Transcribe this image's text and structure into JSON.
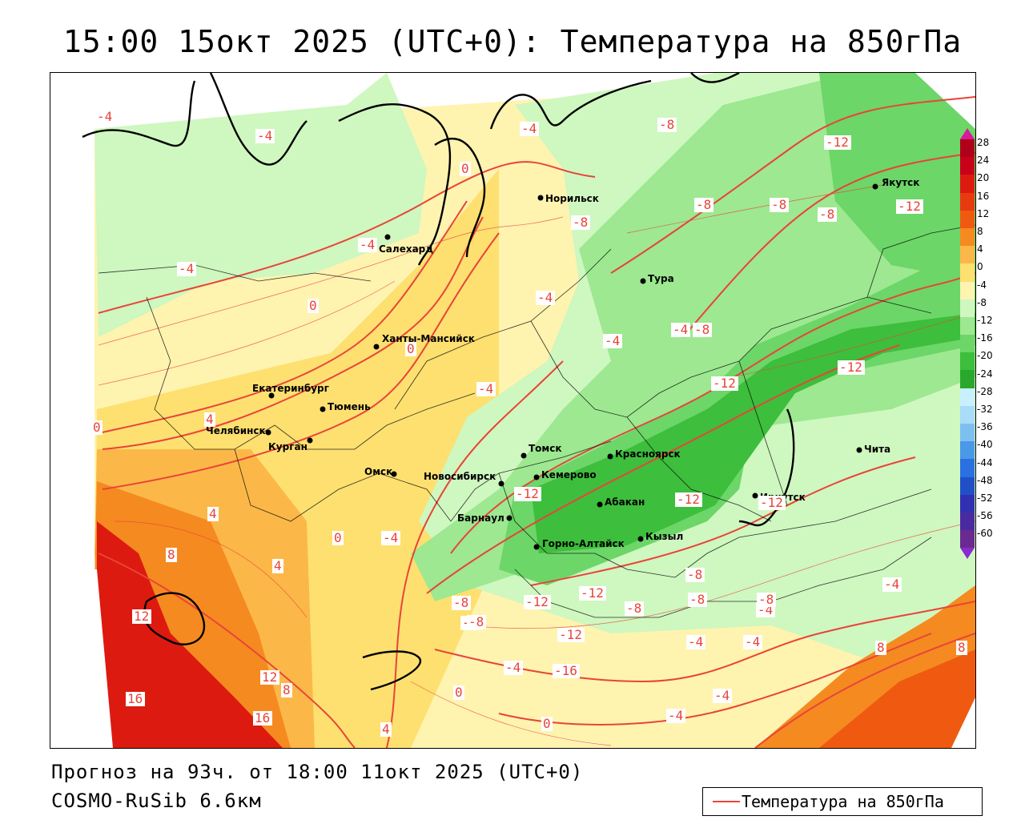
{
  "title": "15:00 15окт 2025 (UTC+0): Температура на 850гПа",
  "footer": {
    "forecast": "Прогноз на 93ч. от 18:00 11окт 2025 (UTC+0)",
    "model": "COSMO-RuSib 6.6км"
  },
  "legend": {
    "label": "Температура на 850гПа",
    "line_color": "#e8443a"
  },
  "colorbar": {
    "labels": [
      "28",
      "24",
      "20",
      "16",
      "12",
      "8",
      "4",
      "0",
      "-4",
      "-8",
      "-12",
      "-16",
      "-20",
      "-24",
      "-28",
      "-32",
      "-36",
      "-40",
      "-44",
      "-48",
      "-52",
      "-56",
      "-60"
    ],
    "colors": [
      "#b0001a",
      "#c8001a",
      "#dd1a10",
      "#e83a10",
      "#f05a10",
      "#f58a20",
      "#fbb848",
      "#fde070",
      "#fff3b0",
      "#cff7c0",
      "#9de890",
      "#6cd668",
      "#3dbe3c",
      "#2aa82e",
      "#c9f0ff",
      "#a8dcf8",
      "#7dc0f0",
      "#4a98e8",
      "#2a70e0",
      "#2050c8",
      "#3030b0",
      "#4a2aa0",
      "#6a2a90"
    ]
  },
  "cities": [
    {
      "name": "Якутск"
    },
    {
      "name": "Норильск"
    },
    {
      "name": "Салехард"
    },
    {
      "name": "Тура"
    },
    {
      "name": "Ханты-Мансийск"
    },
    {
      "name": "Екатеринбург"
    },
    {
      "name": "Тюмень"
    },
    {
      "name": "Челябинск"
    },
    {
      "name": "Курган"
    },
    {
      "name": "Омск"
    },
    {
      "name": "Томск"
    },
    {
      "name": "Красноярск"
    },
    {
      "name": "Кемерово"
    },
    {
      "name": "Новосибирск"
    },
    {
      "name": "Абакан"
    },
    {
      "name": "Барнаул"
    },
    {
      "name": "Иркутск"
    },
    {
      "name": "Горно-Алтайск"
    },
    {
      "name": "Кызыл"
    },
    {
      "name": "Чита"
    }
  ],
  "isolines": {
    "values": [
      "-4",
      "-4",
      "0",
      "-4",
      "-4",
      "-8",
      "-8",
      "-12",
      "-8",
      "-8",
      "-8",
      "-12",
      "-4",
      "-4",
      "-4",
      "0",
      "0",
      "-4",
      "-4",
      "-8",
      "-12",
      "-12",
      "-12",
      "-12",
      "0",
      "4",
      "-4",
      "-8",
      "-12",
      "4",
      "8",
      "4",
      "0",
      "-4",
      "-12",
      "-12",
      "-8",
      "12",
      "-8",
      "-12",
      "-16",
      "-8",
      "-8",
      "-4",
      "-4",
      "-4",
      "8",
      "8",
      "12",
      "16",
      "16",
      "8",
      "4",
      "-4",
      "0",
      "0",
      "-4",
      "-4",
      "-8",
      "-8"
    ]
  }
}
